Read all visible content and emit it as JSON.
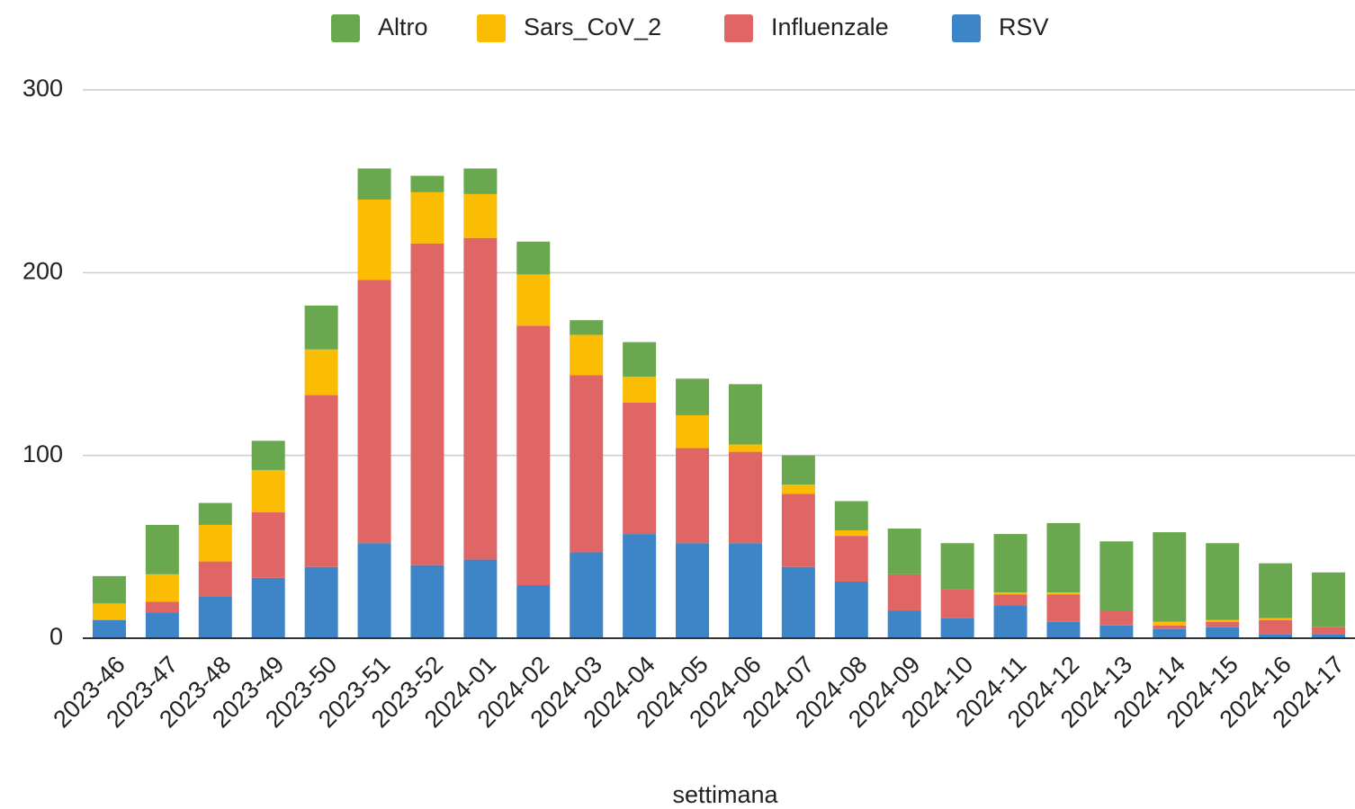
{
  "chart_data": {
    "type": "stacked_bar",
    "x_label": "settimana",
    "categories": [
      "2023-46",
      "2023-47",
      "2023-48",
      "2023-49",
      "2023-50",
      "2023-51",
      "2023-52",
      "2024-01",
      "2024-02",
      "2024-03",
      "2024-04",
      "2024-05",
      "2024-06",
      "2024-07",
      "2024-08",
      "2024-09",
      "2024-10",
      "2024-11",
      "2024-12",
      "2024-13",
      "2024-14",
      "2024-15",
      "2024-16",
      "2024-17"
    ],
    "series": [
      {
        "name": "Altro",
        "color": "#6aa84f",
        "values": [
          15,
          27,
          12,
          16,
          24,
          17,
          9,
          14,
          18,
          8,
          19,
          20,
          33,
          16,
          16,
          25,
          25,
          32,
          38,
          38,
          49,
          42,
          30,
          30
        ]
      },
      {
        "name": "Sars_CoV_2",
        "color": "#fbbc04",
        "values": [
          9,
          15,
          20,
          23,
          25,
          44,
          28,
          24,
          28,
          22,
          14,
          18,
          4,
          5,
          3,
          0,
          0,
          1,
          1,
          0,
          2,
          1,
          1,
          0
        ]
      },
      {
        "name": "Influenzale",
        "color": "#e06666",
        "values": [
          0,
          6,
          19,
          36,
          94,
          144,
          176,
          176,
          142,
          97,
          72,
          52,
          50,
          40,
          25,
          20,
          16,
          6,
          15,
          8,
          2,
          3,
          8,
          4
        ]
      },
      {
        "name": "RSV",
        "color": "#3d85c6",
        "values": [
          10,
          14,
          23,
          33,
          39,
          52,
          40,
          43,
          29,
          47,
          57,
          52,
          52,
          39,
          31,
          15,
          11,
          18,
          9,
          7,
          5,
          6,
          2,
          2
        ]
      }
    ],
    "ylim": [
      0,
      300
    ],
    "yticks": [
      0,
      100,
      200,
      300
    ],
    "grid": true,
    "legend": "top"
  }
}
